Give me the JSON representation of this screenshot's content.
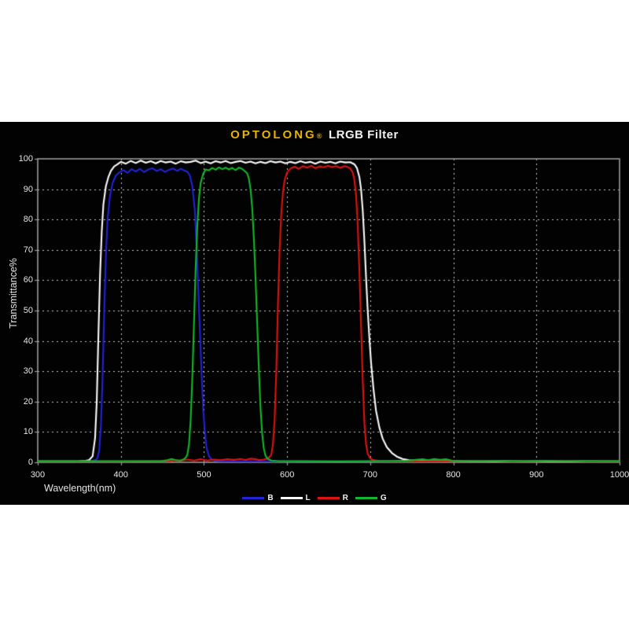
{
  "page": {
    "background": "#ffffff",
    "panel_background": "#020202"
  },
  "header": {
    "brand": "OPTOLONG",
    "registered_mark": "®",
    "title_rest": "LRGB Filter",
    "brand_color": "#e6b400"
  },
  "chart_data": {
    "type": "line",
    "title": "OPTOLONG® LRGB Filter",
    "xlabel": "Wavelength(nm)",
    "ylabel": "Transmittance%",
    "xlim": [
      300,
      1000
    ],
    "ylim": [
      0,
      100
    ],
    "x_ticks": [
      300,
      400,
      500,
      600,
      700,
      800,
      900,
      1000
    ],
    "y_ticks": [
      0,
      10,
      20,
      30,
      40,
      50,
      60,
      70,
      80,
      90,
      100
    ],
    "grid": "dashed gray lines at every tick, black background",
    "legend_position": "bottom-center",
    "border_color": "#9a9a9a",
    "grid_color": "#c9c9c9",
    "series": [
      {
        "name": "B",
        "color": "#2323d8",
        "points": [
          [
            300,
            0.3
          ],
          [
            330,
            0.3
          ],
          [
            358,
            0.35
          ],
          [
            366,
            0.5
          ],
          [
            370,
            0.8
          ],
          [
            372,
            1.5
          ],
          [
            374,
            4
          ],
          [
            376,
            12
          ],
          [
            378,
            28
          ],
          [
            380,
            50
          ],
          [
            382,
            68
          ],
          [
            384,
            80
          ],
          [
            387,
            88
          ],
          [
            390,
            92
          ],
          [
            394,
            94.5
          ],
          [
            398,
            95.5
          ],
          [
            403,
            96.3
          ],
          [
            408,
            95.4
          ],
          [
            413,
            96.6
          ],
          [
            418,
            95.8
          ],
          [
            423,
            96.7
          ],
          [
            428,
            95.6
          ],
          [
            433,
            96.5
          ],
          [
            438,
            96.9
          ],
          [
            443,
            96
          ],
          [
            448,
            96.6
          ],
          [
            453,
            95.7
          ],
          [
            458,
            96.4
          ],
          [
            463,
            96.8
          ],
          [
            468,
            96
          ],
          [
            472,
            96.7
          ],
          [
            476,
            96.2
          ],
          [
            480,
            95.8
          ],
          [
            483,
            94.5
          ],
          [
            486,
            91
          ],
          [
            489,
            83
          ],
          [
            491,
            72
          ],
          [
            493,
            58
          ],
          [
            495,
            44
          ],
          [
            497,
            30
          ],
          [
            499,
            18
          ],
          [
            501,
            10
          ],
          [
            503,
            5
          ],
          [
            506,
            2
          ],
          [
            509,
            1
          ],
          [
            513,
            0.5
          ],
          [
            520,
            0.35
          ],
          [
            560,
            0.3
          ],
          [
            620,
            0.3
          ],
          [
            700,
            0.3
          ],
          [
            800,
            0.3
          ],
          [
            900,
            0.3
          ],
          [
            1000,
            0.3
          ]
        ]
      },
      {
        "name": "L",
        "color": "#fafafa",
        "points": [
          [
            300,
            0.3
          ],
          [
            325,
            0.3
          ],
          [
            350,
            0.4
          ],
          [
            358,
            0.5
          ],
          [
            362,
            0.8
          ],
          [
            366,
            2
          ],
          [
            369,
            8
          ],
          [
            371,
            20
          ],
          [
            373,
            42
          ],
          [
            375,
            62
          ],
          [
            377,
            76
          ],
          [
            379,
            85
          ],
          [
            382,
            91
          ],
          [
            385,
            94
          ],
          [
            388,
            96
          ],
          [
            392,
            97.5
          ],
          [
            396,
            98.2
          ],
          [
            400,
            99
          ],
          [
            406,
            98.4
          ],
          [
            412,
            99.3
          ],
          [
            418,
            98.6
          ],
          [
            424,
            99.4
          ],
          [
            430,
            98.7
          ],
          [
            436,
            99.2
          ],
          [
            442,
            98.5
          ],
          [
            448,
            99.3
          ],
          [
            454,
            98.8
          ],
          [
            460,
            99.1
          ],
          [
            466,
            98.4
          ],
          [
            472,
            99.2
          ],
          [
            478,
            98.8
          ],
          [
            484,
            99
          ],
          [
            490,
            99.4
          ],
          [
            496,
            98.6
          ],
          [
            502,
            99.1
          ],
          [
            508,
            98.5
          ],
          [
            514,
            99.2
          ],
          [
            520,
            98.8
          ],
          [
            526,
            99.3
          ],
          [
            532,
            98.6
          ],
          [
            538,
            99
          ],
          [
            544,
            99.3
          ],
          [
            550,
            98.7
          ],
          [
            556,
            99.1
          ],
          [
            562,
            98.5
          ],
          [
            568,
            99
          ],
          [
            574,
            98.6
          ],
          [
            580,
            99.2
          ],
          [
            586,
            98.8
          ],
          [
            592,
            99.1
          ],
          [
            598,
            98.5
          ],
          [
            604,
            99
          ],
          [
            610,
            98.6
          ],
          [
            616,
            99.2
          ],
          [
            622,
            98.7
          ],
          [
            628,
            99
          ],
          [
            634,
            98.4
          ],
          [
            640,
            99.1
          ],
          [
            646,
            98.7
          ],
          [
            652,
            99
          ],
          [
            658,
            98.5
          ],
          [
            664,
            99.1
          ],
          [
            670,
            98.8
          ],
          [
            676,
            98.9
          ],
          [
            681,
            98.2
          ],
          [
            684,
            97
          ],
          [
            687,
            94
          ],
          [
            689,
            90
          ],
          [
            691,
            83
          ],
          [
            693,
            73
          ],
          [
            695,
            61
          ],
          [
            697,
            50
          ],
          [
            699,
            41
          ],
          [
            701,
            33
          ],
          [
            704,
            24
          ],
          [
            707,
            17
          ],
          [
            711,
            11.5
          ],
          [
            715,
            7.8
          ],
          [
            720,
            5
          ],
          [
            726,
            3.1
          ],
          [
            732,
            1.9
          ],
          [
            739,
            1.1
          ],
          [
            747,
            0.7
          ],
          [
            756,
            0.5
          ],
          [
            770,
            0.4
          ],
          [
            800,
            0.35
          ],
          [
            850,
            0.3
          ],
          [
            900,
            0.3
          ],
          [
            950,
            0.3
          ],
          [
            1000,
            0.3
          ]
        ]
      },
      {
        "name": "R",
        "color": "#de1212",
        "points": [
          [
            300,
            0.3
          ],
          [
            350,
            0.3
          ],
          [
            400,
            0.3
          ],
          [
            440,
            0.35
          ],
          [
            458,
            0.4
          ],
          [
            466,
            0.7
          ],
          [
            472,
            0.5
          ],
          [
            480,
            0.9
          ],
          [
            488,
            0.6
          ],
          [
            496,
            1
          ],
          [
            504,
            0.6
          ],
          [
            512,
            0.9
          ],
          [
            520,
            0.7
          ],
          [
            528,
            1
          ],
          [
            536,
            0.8
          ],
          [
            544,
            1.1
          ],
          [
            550,
            0.8
          ],
          [
            556,
            1.2
          ],
          [
            562,
            1
          ],
          [
            567,
            0.7
          ],
          [
            572,
            0.9
          ],
          [
            576,
            1.2
          ],
          [
            579,
            1.8
          ],
          [
            581,
            2.5
          ],
          [
            583,
            6
          ],
          [
            585,
            14
          ],
          [
            587,
            30
          ],
          [
            589,
            52
          ],
          [
            591,
            70
          ],
          [
            593,
            82
          ],
          [
            595,
            89
          ],
          [
            597,
            93
          ],
          [
            600,
            95.5
          ],
          [
            604,
            96.8
          ],
          [
            609,
            97.4
          ],
          [
            614,
            96.7
          ],
          [
            619,
            97.6
          ],
          [
            624,
            97.1
          ],
          [
            629,
            97.7
          ],
          [
            634,
            96.9
          ],
          [
            639,
            97.5
          ],
          [
            644,
            97.2
          ],
          [
            649,
            97.7
          ],
          [
            654,
            97.3
          ],
          [
            659,
            97.6
          ],
          [
            664,
            97
          ],
          [
            669,
            97.6
          ],
          [
            673,
            97.3
          ],
          [
            676,
            96.8
          ],
          [
            679,
            95.5
          ],
          [
            681,
            93
          ],
          [
            683,
            88
          ],
          [
            685,
            78
          ],
          [
            687,
            63
          ],
          [
            689,
            45
          ],
          [
            691,
            27
          ],
          [
            693,
            13
          ],
          [
            695,
            6
          ],
          [
            697,
            2.8
          ],
          [
            700,
            1.3
          ],
          [
            704,
            0.7
          ],
          [
            712,
            0.45
          ],
          [
            730,
            0.35
          ],
          [
            760,
            0.3
          ],
          [
            800,
            0.35
          ],
          [
            840,
            0.45
          ],
          [
            870,
            0.3
          ],
          [
            900,
            0.35
          ],
          [
            930,
            0.45
          ],
          [
            960,
            0.3
          ],
          [
            1000,
            0.3
          ]
        ]
      },
      {
        "name": "G",
        "color": "#12b82a",
        "points": [
          [
            300,
            0.35
          ],
          [
            340,
            0.35
          ],
          [
            380,
            0.4
          ],
          [
            420,
            0.35
          ],
          [
            448,
            0.4
          ],
          [
            456,
            0.7
          ],
          [
            461,
            1.1
          ],
          [
            466,
            0.7
          ],
          [
            471,
            0.6
          ],
          [
            475,
            0.9
          ],
          [
            478,
            1.5
          ],
          [
            480,
            2.5
          ],
          [
            482,
            6
          ],
          [
            484,
            14
          ],
          [
            486,
            28
          ],
          [
            488,
            46
          ],
          [
            490,
            64
          ],
          [
            492,
            78
          ],
          [
            494,
            87
          ],
          [
            496,
            92
          ],
          [
            499,
            95
          ],
          [
            502,
            96.5
          ],
          [
            506,
            96.2
          ],
          [
            510,
            97
          ],
          [
            514,
            96.4
          ],
          [
            518,
            97.2
          ],
          [
            522,
            96.6
          ],
          [
            526,
            97.1
          ],
          [
            530,
            96.5
          ],
          [
            534,
            97
          ],
          [
            538,
            96.3
          ],
          [
            542,
            97.1
          ],
          [
            546,
            96.7
          ],
          [
            549,
            96
          ],
          [
            552,
            95.2
          ],
          [
            554,
            93.5
          ],
          [
            556,
            90
          ],
          [
            558,
            84
          ],
          [
            560,
            74
          ],
          [
            562,
            61
          ],
          [
            564,
            46
          ],
          [
            566,
            31
          ],
          [
            568,
            18
          ],
          [
            570,
            9.5
          ],
          [
            572,
            4.5
          ],
          [
            574,
            2.2
          ],
          [
            577,
            1.1
          ],
          [
            581,
            0.6
          ],
          [
            590,
            0.4
          ],
          [
            620,
            0.35
          ],
          [
            660,
            0.3
          ],
          [
            700,
            0.35
          ],
          [
            725,
            0.45
          ],
          [
            745,
            0.55
          ],
          [
            755,
            0.8
          ],
          [
            763,
            1
          ],
          [
            770,
            0.7
          ],
          [
            777,
            1.1
          ],
          [
            784,
            0.8
          ],
          [
            791,
            1
          ],
          [
            798,
            0.6
          ],
          [
            810,
            0.45
          ],
          [
            835,
            0.4
          ],
          [
            860,
            0.5
          ],
          [
            885,
            0.4
          ],
          [
            910,
            0.5
          ],
          [
            935,
            0.4
          ],
          [
            960,
            0.45
          ],
          [
            1000,
            0.4
          ]
        ]
      }
    ]
  }
}
